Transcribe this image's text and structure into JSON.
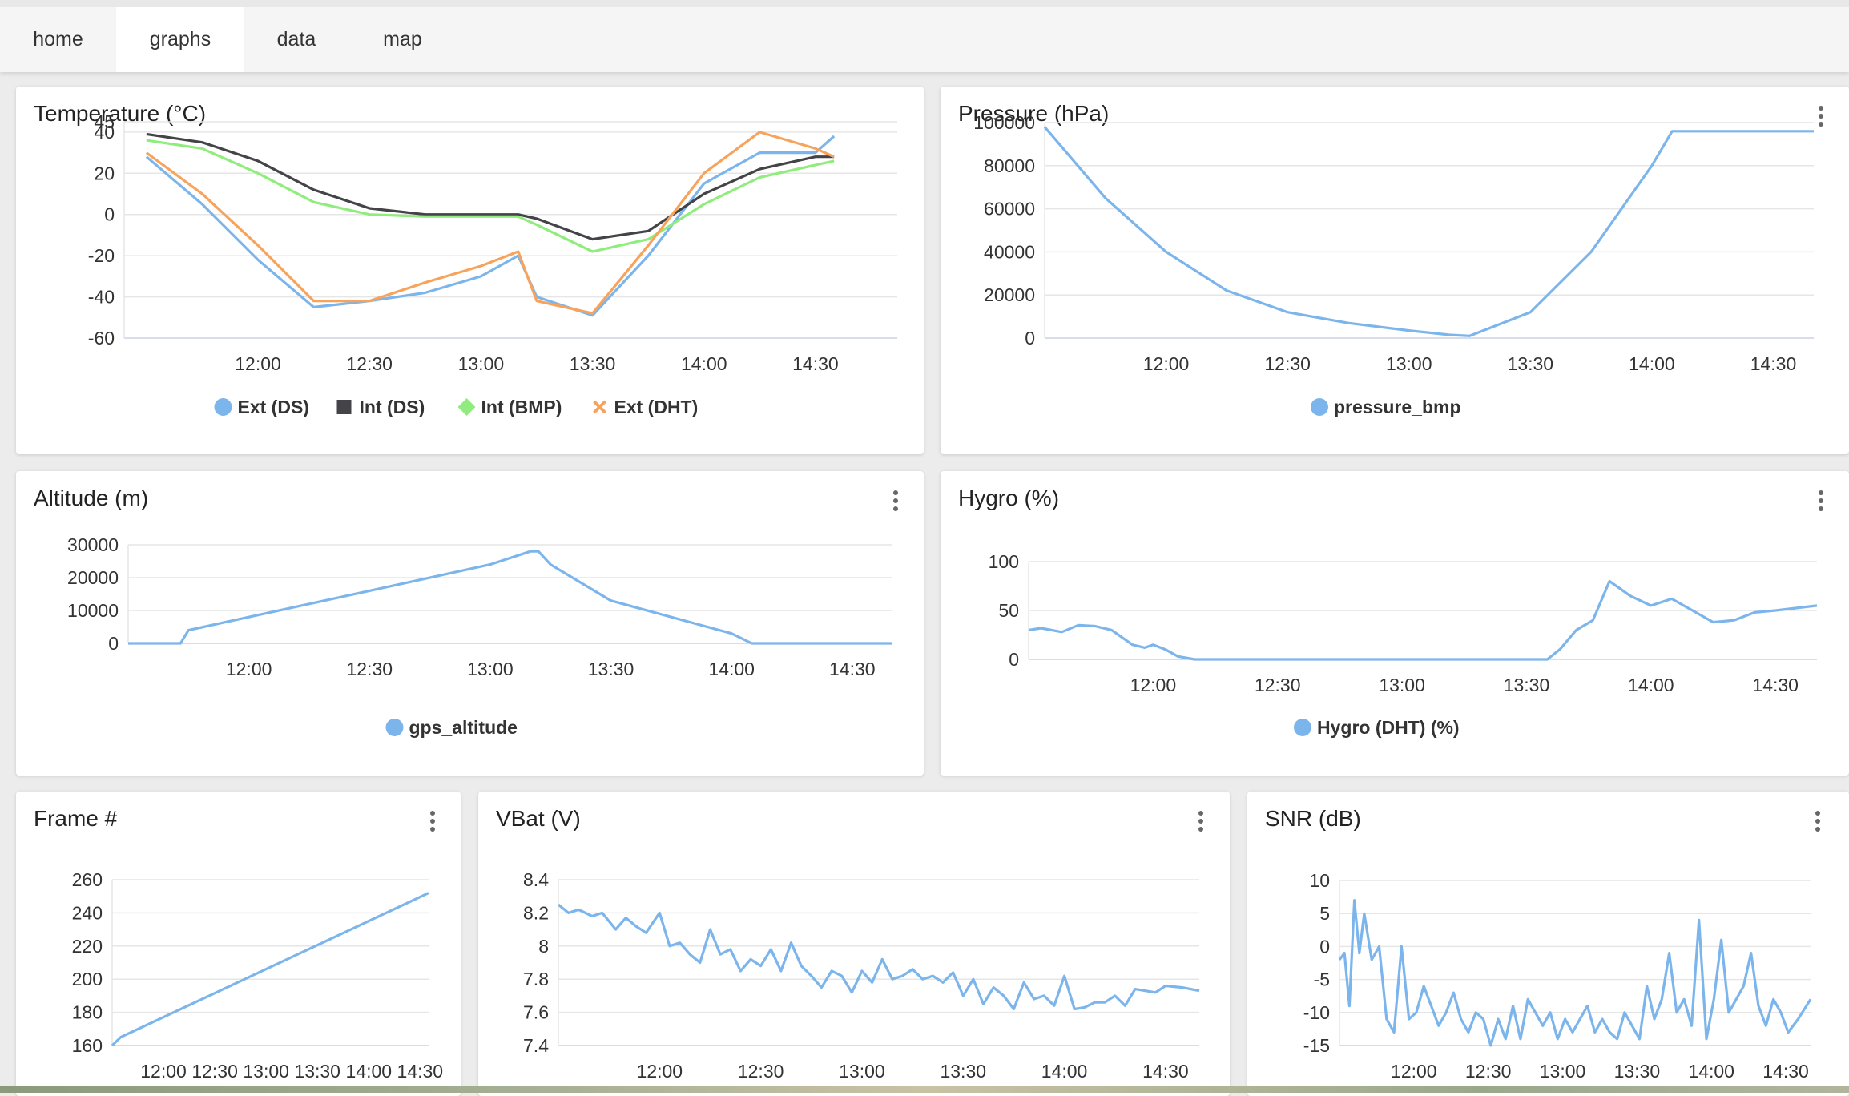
{
  "nav": {
    "tabs": [
      {
        "label": "home",
        "active": false
      },
      {
        "label": "graphs",
        "active": true
      },
      {
        "label": "data",
        "active": false
      },
      {
        "label": "map",
        "active": false
      }
    ]
  },
  "menu_icon": "more-vertical-icon",
  "colors": {
    "blue": "#7cb5ec",
    "dark": "#434348",
    "green": "#90ed7d",
    "orange": "#f7a35c",
    "grid": "#e6e6e6",
    "axis_text": "#333333"
  },
  "chart_data": [
    {
      "id": "temperature",
      "type": "line",
      "title": "Temperature (°C)",
      "x": [
        "11:30",
        "11:45",
        "12:00",
        "12:15",
        "12:30",
        "12:45",
        "13:00",
        "13:10",
        "13:15",
        "13:30",
        "13:45",
        "14:00",
        "14:15",
        "14:30",
        "14:35"
      ],
      "xticks": [
        "12:00",
        "12:30",
        "13:00",
        "13:30",
        "14:00",
        "14:30"
      ],
      "xlim": [
        "11:24",
        "14:52"
      ],
      "ylim": [
        -60,
        45
      ],
      "yticks": [
        -60,
        -40,
        -20,
        0,
        20,
        40,
        45
      ],
      "legend_position": "bottom",
      "series": [
        {
          "name": "Ext (DS)",
          "color": "#7cb5ec",
          "marker": "circle",
          "values": [
            28,
            5,
            -22,
            -45,
            -42,
            -38,
            -30,
            -20,
            -40,
            -49,
            -20,
            15,
            30,
            30,
            38
          ]
        },
        {
          "name": "Int (DS)",
          "color": "#434348",
          "marker": "square",
          "values": [
            39,
            35,
            26,
            12,
            3,
            0,
            0,
            0,
            -2,
            -12,
            -8,
            10,
            22,
            28,
            28
          ]
        },
        {
          "name": "Int (BMP)",
          "color": "#90ed7d",
          "marker": "diamond",
          "values": [
            36,
            32,
            20,
            6,
            0,
            -1,
            -1,
            -1,
            -5,
            -18,
            -12,
            5,
            18,
            24,
            26
          ]
        },
        {
          "name": "Ext (DHT)",
          "color": "#f7a35c",
          "marker": "cross",
          "values": [
            30,
            10,
            -15,
            -42,
            -42,
            -33,
            -25,
            -18,
            -42,
            -48,
            -15,
            20,
            40,
            32,
            28
          ]
        }
      ]
    },
    {
      "id": "pressure",
      "type": "line",
      "title": "Pressure (hPa)",
      "x": [
        "11:30",
        "11:45",
        "12:00",
        "12:15",
        "12:30",
        "12:45",
        "13:00",
        "13:10",
        "13:15",
        "13:30",
        "13:45",
        "14:00",
        "14:05",
        "14:15",
        "14:30",
        "14:40"
      ],
      "xticks": [
        "12:00",
        "12:30",
        "13:00",
        "13:30",
        "14:00",
        "14:30"
      ],
      "xlim": [
        "11:30",
        "14:40"
      ],
      "ylim": [
        0,
        100000
      ],
      "yticks": [
        0,
        20000,
        40000,
        60000,
        80000,
        100000
      ],
      "legend_position": "bottom",
      "series": [
        {
          "name": "pressure_bmp",
          "color": "#7cb5ec",
          "marker": "circle",
          "values": [
            98000,
            65000,
            40000,
            22000,
            12000,
            7000,
            3500,
            1500,
            1000,
            12000,
            40000,
            80000,
            96000,
            96000,
            96000,
            96000
          ]
        }
      ]
    },
    {
      "id": "altitude",
      "type": "line",
      "title": "Altitude (m)",
      "x": [
        "11:30",
        "11:43",
        "11:45",
        "12:00",
        "12:30",
        "13:00",
        "13:10",
        "13:12",
        "13:15",
        "13:30",
        "14:00",
        "14:05",
        "14:30",
        "14:40"
      ],
      "xticks": [
        "12:00",
        "12:30",
        "13:00",
        "13:30",
        "14:00",
        "14:30"
      ],
      "xlim": [
        "11:30",
        "14:40"
      ],
      "ylim": [
        0,
        30000
      ],
      "yticks": [
        0,
        10000,
        20000,
        30000
      ],
      "legend_position": "bottom",
      "series": [
        {
          "name": "gps_altitude",
          "color": "#7cb5ec",
          "marker": "circle",
          "values": [
            0,
            0,
            4000,
            8000,
            16000,
            24000,
            28000,
            28000,
            24000,
            13000,
            3000,
            0,
            0,
            0
          ]
        }
      ]
    },
    {
      "id": "hygro",
      "type": "line",
      "title": "Hygro (%)",
      "x": [
        "11:30",
        "11:33",
        "11:38",
        "11:42",
        "11:46",
        "11:50",
        "11:55",
        "11:58",
        "12:00",
        "12:03",
        "12:06",
        "12:10",
        "13:35",
        "13:38",
        "13:42",
        "13:46",
        "13:50",
        "13:55",
        "14:00",
        "14:05",
        "14:10",
        "14:15",
        "14:20",
        "14:25",
        "14:30",
        "14:40"
      ],
      "xticks": [
        "12:00",
        "12:30",
        "13:00",
        "13:30",
        "14:00",
        "14:30"
      ],
      "xlim": [
        "11:30",
        "14:40"
      ],
      "ylim": [
        0,
        100
      ],
      "yticks": [
        0,
        50,
        100
      ],
      "legend_position": "bottom",
      "series": [
        {
          "name": "Hygro (DHT) (%)",
          "color": "#7cb5ec",
          "marker": "circle",
          "values": [
            30,
            32,
            28,
            35,
            34,
            30,
            15,
            12,
            15,
            10,
            3,
            0,
            0,
            10,
            30,
            40,
            80,
            65,
            55,
            62,
            50,
            38,
            40,
            48,
            50,
            55
          ]
        }
      ]
    },
    {
      "id": "frame",
      "type": "line",
      "title": "Frame #",
      "x": [
        "11:30",
        "11:35",
        "14:35"
      ],
      "xticks": [
        "12:00",
        "12:30",
        "13:00",
        "13:30",
        "14:00",
        "14:30"
      ],
      "xlim": [
        "11:30",
        "14:35"
      ],
      "ylim": [
        160,
        260
      ],
      "yticks": [
        160,
        180,
        200,
        220,
        240,
        260
      ],
      "legend_position": "none",
      "series": [
        {
          "name": "",
          "color": "#7cb5ec",
          "values": [
            160,
            165,
            252
          ]
        }
      ]
    },
    {
      "id": "vbat",
      "type": "line",
      "title": "VBat (V)",
      "x": [
        "11:30",
        "11:33",
        "11:36",
        "11:40",
        "11:43",
        "11:47",
        "11:50",
        "11:53",
        "11:56",
        "12:00",
        "12:03",
        "12:06",
        "12:09",
        "12:12",
        "12:15",
        "12:18",
        "12:21",
        "12:24",
        "12:27",
        "12:30",
        "12:33",
        "12:36",
        "12:39",
        "12:42",
        "12:45",
        "12:48",
        "12:51",
        "12:54",
        "12:57",
        "13:00",
        "13:03",
        "13:06",
        "13:09",
        "13:12",
        "13:15",
        "13:18",
        "13:21",
        "13:24",
        "13:27",
        "13:30",
        "13:33",
        "13:36",
        "13:39",
        "13:42",
        "13:45",
        "13:48",
        "13:51",
        "13:54",
        "13:57",
        "14:00",
        "14:03",
        "14:06",
        "14:09",
        "14:12",
        "14:15",
        "14:18",
        "14:21",
        "14:24",
        "14:27",
        "14:30",
        "14:35",
        "14:40"
      ],
      "xticks": [
        "12:00",
        "12:30",
        "13:00",
        "13:30",
        "14:00",
        "14:30"
      ],
      "xlim": [
        "11:30",
        "14:40"
      ],
      "ylim": [
        7.4,
        8.4
      ],
      "yticks": [
        7.4,
        7.6,
        7.8,
        8.0,
        8.2,
        8.4
      ],
      "legend_position": "none",
      "series": [
        {
          "name": "",
          "color": "#7cb5ec",
          "values": [
            8.25,
            8.2,
            8.22,
            8.18,
            8.2,
            8.1,
            8.17,
            8.12,
            8.08,
            8.2,
            8.0,
            8.02,
            7.95,
            7.9,
            8.1,
            7.95,
            7.98,
            7.85,
            7.92,
            7.88,
            7.98,
            7.85,
            8.02,
            7.88,
            7.82,
            7.75,
            7.85,
            7.82,
            7.72,
            7.85,
            7.78,
            7.92,
            7.8,
            7.82,
            7.86,
            7.8,
            7.82,
            7.78,
            7.84,
            7.7,
            7.8,
            7.65,
            7.75,
            7.7,
            7.62,
            7.78,
            7.68,
            7.7,
            7.64,
            7.82,
            7.62,
            7.63,
            7.66,
            7.66,
            7.7,
            7.64,
            7.74,
            7.73,
            7.72,
            7.76,
            7.75,
            7.73
          ]
        }
      ]
    },
    {
      "id": "snr",
      "type": "line",
      "title": "SNR (dB)",
      "x": [
        "11:30",
        "11:32",
        "11:34",
        "11:36",
        "11:38",
        "11:40",
        "11:43",
        "11:46",
        "11:49",
        "11:52",
        "11:55",
        "11:58",
        "12:01",
        "12:04",
        "12:07",
        "12:10",
        "12:13",
        "12:16",
        "12:19",
        "12:22",
        "12:25",
        "12:28",
        "12:31",
        "12:34",
        "12:37",
        "12:40",
        "12:43",
        "12:46",
        "12:49",
        "12:52",
        "12:55",
        "12:58",
        "13:01",
        "13:04",
        "13:07",
        "13:10",
        "13:13",
        "13:16",
        "13:19",
        "13:22",
        "13:25",
        "13:28",
        "13:31",
        "13:34",
        "13:37",
        "13:40",
        "13:43",
        "13:46",
        "13:49",
        "13:52",
        "13:55",
        "13:58",
        "14:01",
        "14:04",
        "14:07",
        "14:10",
        "14:13",
        "14:16",
        "14:19",
        "14:22",
        "14:25",
        "14:28",
        "14:31",
        "14:35",
        "14:40"
      ],
      "xticks": [
        "12:00",
        "12:30",
        "13:00",
        "13:30",
        "14:00",
        "14:30"
      ],
      "xlim": [
        "11:30",
        "14:40"
      ],
      "ylim": [
        -15,
        10
      ],
      "yticks": [
        -15,
        -10,
        -5,
        0,
        5,
        10
      ],
      "legend_position": "none",
      "series": [
        {
          "name": "",
          "color": "#7cb5ec",
          "values": [
            -2,
            -1,
            -9,
            7,
            -1,
            5,
            -2,
            0,
            -11,
            -13,
            0,
            -11,
            -10,
            -6,
            -9,
            -12,
            -10,
            -7,
            -11,
            -13,
            -10,
            -11,
            -15,
            -11,
            -14,
            -9,
            -14,
            -8,
            -10,
            -12,
            -10,
            -14,
            -11,
            -13,
            -11,
            -9,
            -13,
            -11,
            -13,
            -14,
            -10,
            -12,
            -14,
            -6,
            -11,
            -8,
            -1,
            -10,
            -8,
            -12,
            4,
            -14,
            -8,
            1,
            -10,
            -8,
            -6,
            -1,
            -9,
            -12,
            -8,
            -10,
            -13,
            -11,
            -8
          ]
        }
      ]
    }
  ]
}
